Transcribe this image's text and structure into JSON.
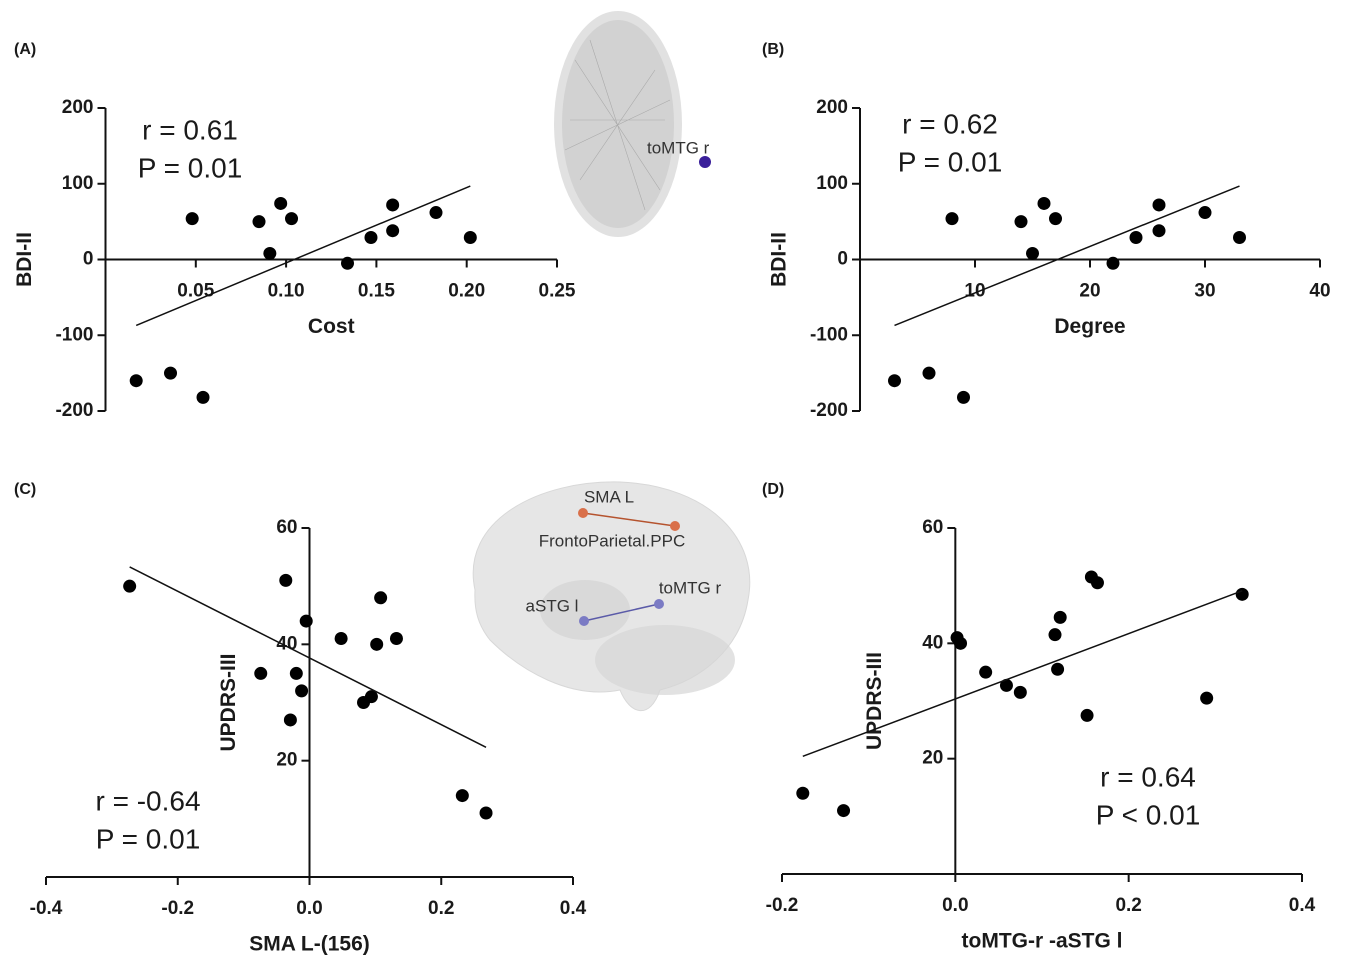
{
  "chart_data": [
    {
      "type": "scatter",
      "panel": "(A)",
      "xlabel": "Cost",
      "ylabel": "BDI-II",
      "annotations": [
        "r = 0.61",
        "P = 0.01"
      ],
      "inset_labels": [
        "toMTG r"
      ],
      "color": "#000000",
      "x": [
        0.017,
        0.036,
        0.054,
        0.048,
        0.085,
        0.091,
        0.097,
        0.103,
        0.134,
        0.147,
        0.159,
        0.159,
        0.183,
        0.202
      ],
      "values": [
        -160,
        -150,
        -182,
        54,
        50,
        8,
        74,
        54,
        -5,
        29,
        72,
        38,
        62,
        29
      ],
      "trendline": {
        "x": [
          0.017,
          0.202
        ],
        "values": [
          -87,
          97
        ]
      },
      "xlim": [
        0,
        0.25
      ],
      "ylim": [
        -200,
        200
      ],
      "xticks": [
        0.05,
        {
          "value": 0.1,
          "label": "0.10"
        },
        0.15,
        {
          "value": 0.2,
          "label": "0.20"
        },
        0.25
      ],
      "yticks": [
        200,
        100,
        0,
        -100,
        -200
      ]
    },
    {
      "type": "scatter",
      "panel": "(B)",
      "xlabel": "Degree",
      "ylabel": "BDI-II",
      "annotations": [
        "r = 0.62",
        "P = 0.01"
      ],
      "color": "#000000",
      "x": [
        3,
        6,
        9,
        8,
        14,
        15,
        16,
        17,
        22,
        24,
        26,
        26,
        30,
        33
      ],
      "values": [
        -160,
        -150,
        -182,
        54,
        50,
        8,
        74,
        54,
        -5,
        29,
        72,
        38,
        62,
        29
      ],
      "trendline": {
        "x": [
          3,
          33
        ],
        "values": [
          -87,
          97
        ]
      },
      "xlim": [
        0,
        40
      ],
      "ylim": [
        -200,
        200
      ],
      "xticks": [
        10,
        20,
        30,
        40
      ],
      "yticks": [
        200,
        100,
        0,
        -100,
        -200
      ]
    },
    {
      "type": "scatter",
      "panel": "(C)",
      "xlabel": "SMA L-(156)",
      "ylabel": "UPDRS-III",
      "annotations": [
        "r = -0.64",
        "P = 0.01"
      ],
      "inset_labels": [
        "SMA L",
        "FrontoParietal.PPC",
        "toMTG r",
        "aSTG l"
      ],
      "color": "#000000",
      "x": [
        -0.273,
        -0.036,
        -0.005,
        -0.074,
        -0.02,
        -0.012,
        -0.029,
        0.048,
        0.108,
        0.102,
        0.132,
        0.082,
        0.094,
        0.232,
        0.268
      ],
      "values": [
        50,
        51,
        44,
        35,
        35,
        32,
        27,
        41,
        48,
        40,
        41,
        30,
        31,
        14,
        11
      ],
      "trendline": {
        "x": [
          -0.273,
          0.268
        ],
        "values": [
          53.3,
          22.3
        ]
      },
      "xlim": [
        -0.4,
        0.4
      ],
      "ylim": [
        0,
        60
      ],
      "xticks": [
        -0.4,
        -0.2,
        {
          "value": 0,
          "label": "0.0"
        },
        0.2,
        0.4
      ],
      "yticks": [
        60,
        40,
        20
      ]
    },
    {
      "type": "scatter",
      "panel": "(D)",
      "xlabel": "toMTG-r -aSTG l",
      "ylabel": "UPDRS-III",
      "annotations": [
        "r = 0.64",
        "P < 0.01"
      ],
      "color": "#000000",
      "x": [
        -0.176,
        -0.129,
        0.002,
        0.006,
        0.035,
        0.059,
        0.075,
        0.115,
        0.121,
        0.118,
        0.152,
        0.157,
        0.164,
        0.29,
        0.331
      ],
      "values": [
        14,
        11,
        41,
        40,
        35,
        32.7,
        31.5,
        41.5,
        44.5,
        35.5,
        27.5,
        51.5,
        50.5,
        30.5,
        48.5
      ],
      "trendline": {
        "x": [
          -0.176,
          0.331
        ],
        "values": [
          20.4,
          49.1
        ]
      },
      "xlim": [
        -0.2,
        0.4
      ],
      "ylim": [
        0,
        60
      ],
      "xticks": [
        -0.2,
        {
          "value": 0,
          "label": "0.0"
        },
        0.2,
        0.4
      ],
      "yticks": [
        60,
        40,
        20
      ]
    }
  ]
}
